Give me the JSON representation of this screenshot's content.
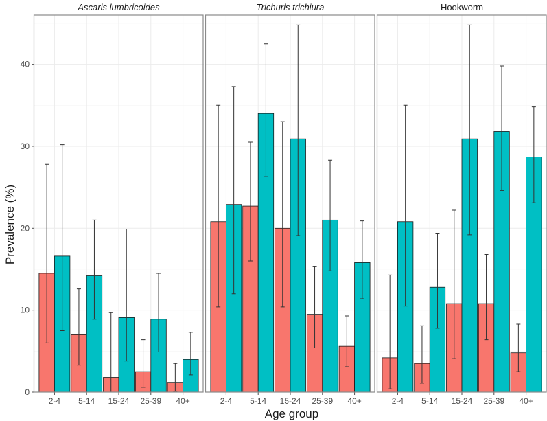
{
  "chart_data": {
    "type": "bar",
    "xlabel": "Age group",
    "ylabel": "Prevalence (%)",
    "ylim": [
      0,
      46
    ],
    "yticks": [
      0,
      10,
      20,
      30,
      40
    ],
    "categories": [
      "2-4",
      "5-14",
      "15-24",
      "25-39",
      "40+"
    ],
    "series_colors": [
      "#F8766D",
      "#00BFC4"
    ],
    "panels": [
      {
        "title": "Ascaris lumbricoides",
        "italic": true,
        "series": [
          {
            "values": [
              14.5,
              7.0,
              1.8,
              2.5,
              1.2
            ],
            "lower": [
              6.0,
              3.3,
              0.0,
              0.6,
              0.1
            ],
            "upper": [
              27.8,
              12.6,
              9.7,
              6.4,
              3.5
            ]
          },
          {
            "values": [
              16.6,
              14.2,
              9.1,
              8.9,
              4.0
            ],
            "lower": [
              7.5,
              8.9,
              3.8,
              4.9,
              2.1
            ],
            "upper": [
              30.2,
              21.0,
              19.9,
              14.5,
              7.3
            ]
          }
        ]
      },
      {
        "title": "Trichuris trichiura",
        "italic": true,
        "series": [
          {
            "values": [
              20.8,
              22.7,
              20.0,
              9.5,
              5.6
            ],
            "lower": [
              10.4,
              16.0,
              10.4,
              5.4,
              3.1
            ],
            "upper": [
              35.0,
              30.5,
              33.0,
              15.3,
              9.3
            ]
          },
          {
            "values": [
              22.9,
              34.0,
              30.9,
              21.0,
              15.8
            ],
            "lower": [
              12.0,
              26.3,
              19.1,
              14.8,
              11.4
            ],
            "upper": [
              37.3,
              42.5,
              44.8,
              28.3,
              20.9
            ]
          }
        ]
      },
      {
        "title": "Hookworm",
        "italic": false,
        "series": [
          {
            "values": [
              4.2,
              3.5,
              10.8,
              10.8,
              4.8
            ],
            "lower": [
              0.4,
              1.1,
              4.1,
              6.4,
              2.5
            ],
            "upper": [
              14.3,
              8.1,
              22.2,
              16.8,
              8.3
            ]
          },
          {
            "values": [
              20.8,
              12.8,
              30.9,
              31.8,
              28.7
            ],
            "lower": [
              10.5,
              7.8,
              19.2,
              24.6,
              23.1
            ],
            "upper": [
              35.0,
              19.4,
              44.8,
              39.8,
              34.8
            ]
          }
        ]
      }
    ]
  }
}
